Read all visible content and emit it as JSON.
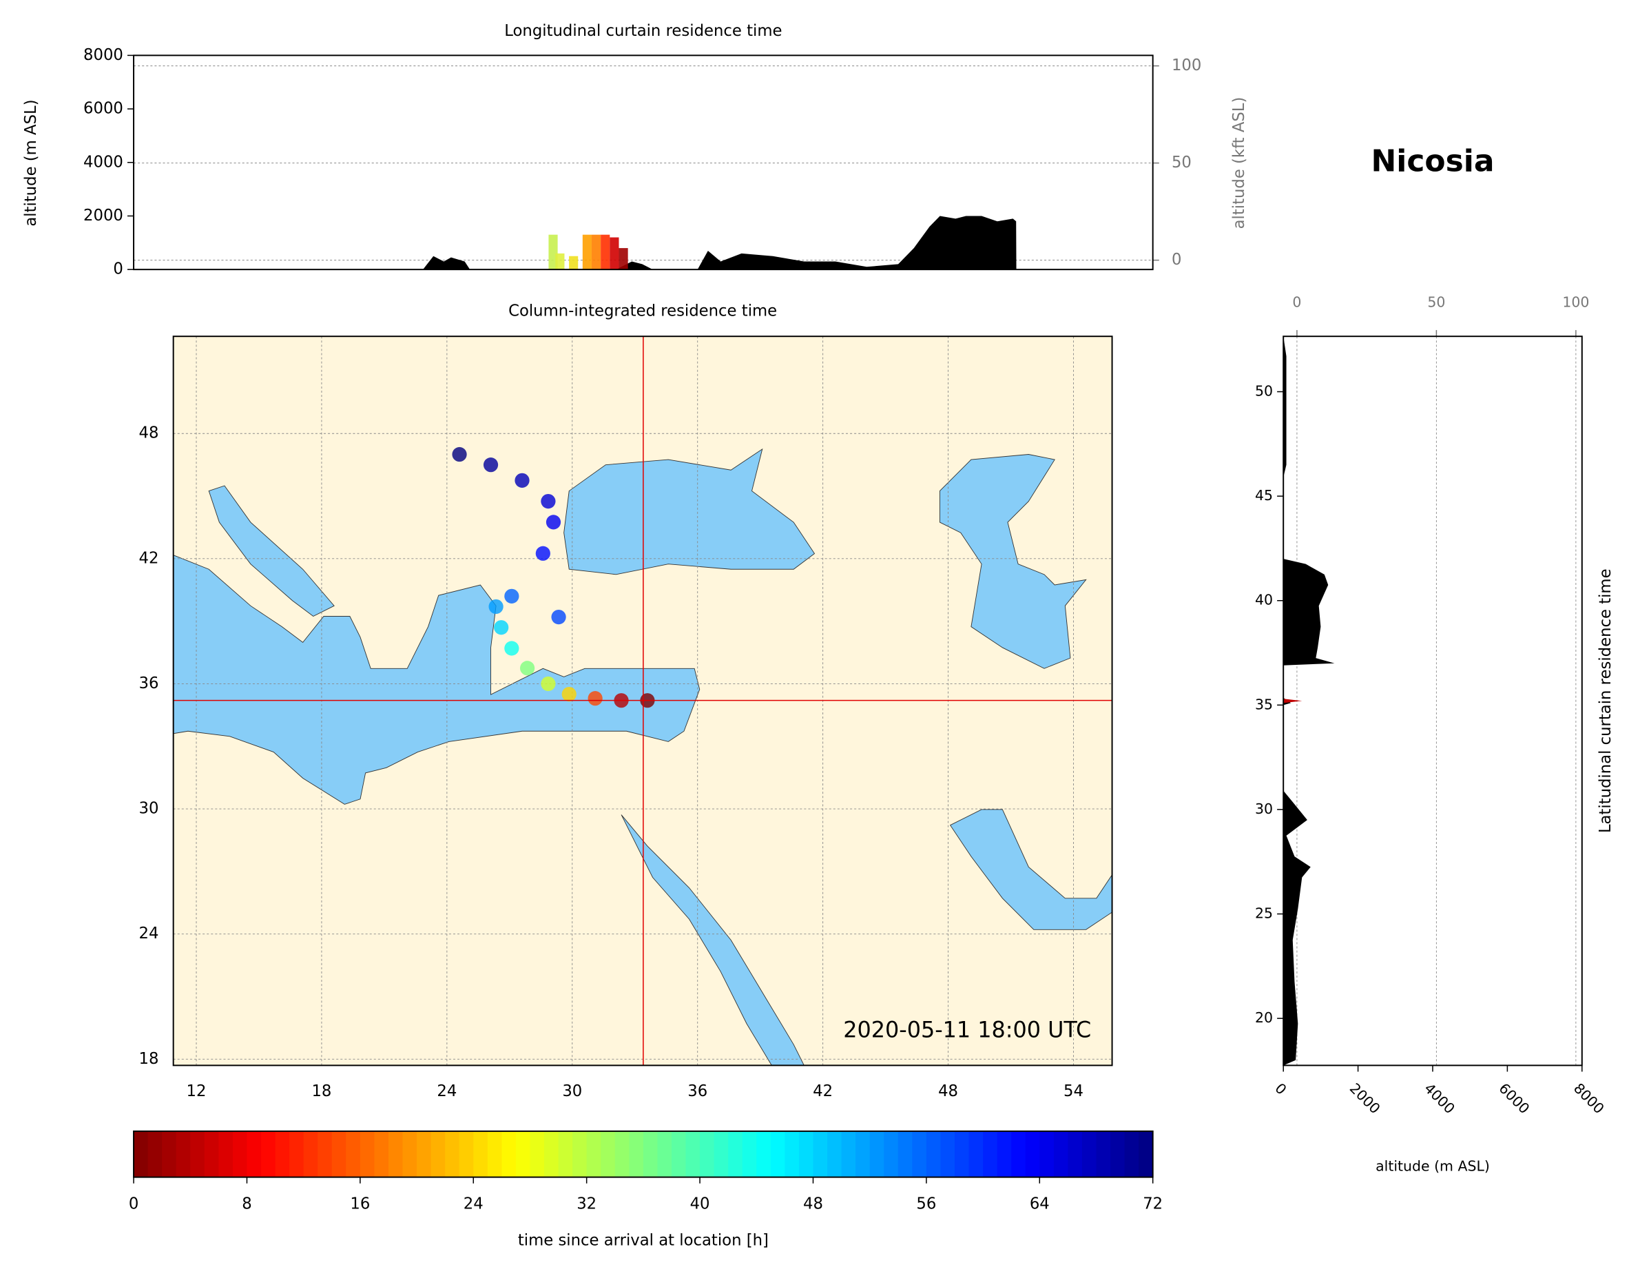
{
  "title": "Nicosia",
  "chart_data": [
    {
      "type": "area",
      "title": "Longitudinal curtain residence time",
      "y_label": "altitude (m ASL)",
      "y2_label": "altitude (kft ASL)",
      "xlim": [
        10.9,
        55.85
      ],
      "ylim": [
        0,
        8000
      ],
      "yticks": [
        0,
        2000,
        4000,
        6000,
        8000
      ],
      "y2lim": [
        -4.8,
        105.4
      ],
      "y2ticks": [
        0,
        50,
        100
      ],
      "grid": true,
      "series": [
        {
          "color": "#000000",
          "x": [
            23.66,
            24.12,
            24.58,
            24.9,
            25.5,
            25.73,
            32.18,
            32.87,
            33.33,
            33.79,
            35.77,
            36.23,
            36.79,
            37.71,
            39.09,
            40.47,
            41.85,
            43.23,
            44.62,
            45.31,
            46.0,
            46.46,
            47.15,
            47.61,
            48.3,
            48.99,
            49.68,
            49.82,
            49.83
          ],
          "values": [
            0,
            500,
            300,
            450,
            300,
            0,
            0,
            300,
            200,
            0,
            0,
            700,
            300,
            600,
            500,
            300,
            300,
            100,
            200,
            800,
            1600,
            2000,
            1900,
            2000,
            2000,
            1800,
            1900,
            1800,
            0
          ]
        }
      ],
      "plume": {
        "x": [
          29.4,
          29.7,
          30.3,
          30.9,
          31.3,
          31.7,
          32.1,
          32.5
        ],
        "values": [
          1300,
          600,
          500,
          1300,
          1300,
          1300,
          1200,
          800
        ],
        "colors": [
          "#c8f050",
          "#e0f040",
          "#f0e020",
          "#ffa000",
          "#ff8000",
          "#ff3000",
          "#d00000",
          "#a00000"
        ]
      }
    },
    {
      "type": "map",
      "title": "Column-integrated residence time",
      "xlim": [
        10.9,
        55.85
      ],
      "ylim": [
        17.7,
        52.66
      ],
      "xticks": [
        12,
        18,
        24,
        30,
        36,
        42,
        48,
        54
      ],
      "yticks": [
        18,
        24,
        30,
        36,
        42,
        48
      ],
      "grid": true,
      "marker": {
        "x": 33.4,
        "y": 35.2,
        "color": "#e00000"
      },
      "trajectory": {
        "x": [
          33.6,
          32.35,
          31.1,
          29.85,
          28.85,
          27.85,
          27.1,
          26.6,
          26.35,
          27.1,
          29.35,
          28.6,
          29.1,
          28.85,
          27.6,
          26.1,
          24.6
        ],
        "y": [
          35.2,
          35.2,
          35.3,
          35.5,
          36.0,
          36.75,
          37.7,
          38.7,
          39.7,
          40.2,
          39.2,
          42.25,
          43.75,
          44.75,
          45.75,
          46.5,
          47.0
        ],
        "values": [
          0,
          4,
          14,
          24,
          30,
          36,
          44,
          48,
          52,
          56,
          58,
          62,
          64,
          66,
          68,
          70,
          72
        ]
      },
      "annotation": "2020-05-11 18:00 UTC"
    },
    {
      "type": "colorbar",
      "label": "time since arrival at location [h]",
      "lim": [
        0,
        72
      ],
      "ticks": [
        0,
        8,
        16,
        24,
        32,
        40,
        48,
        56,
        64,
        72
      ],
      "colormap": "jet_r"
    },
    {
      "type": "area",
      "orientation": "horizontal",
      "title": "Latitudinal curtain residence time",
      "x_label": "altitude (m ASL)",
      "xlim": [
        0,
        8000
      ],
      "xticks": [
        0,
        2000,
        4000,
        6000,
        8000
      ],
      "x2lim": [
        -4.87,
        102.2
      ],
      "x2ticks": [
        0,
        50,
        100
      ],
      "ylim": [
        17.75,
        52.65
      ],
      "yticks": [
        20,
        25,
        30,
        35,
        40,
        45,
        50
      ],
      "grid": true,
      "series": [
        {
          "color": "#000000",
          "y": [
            17.75,
            18.0,
            19.75,
            21.75,
            23.75,
            25.25,
            26.75,
            27.25,
            27.75,
            28.75,
            29.5,
            30.25,
            30.9,
            35.0,
            35.1,
            35.35,
            36.9,
            37.0,
            37.25,
            37.75,
            38.75,
            39.75,
            40.75,
            41.25,
            41.75,
            42.0,
            45.9,
            46.5,
            51.7,
            52.65
          ],
          "values": [
            0,
            330,
            390,
            300,
            250,
            390,
            500,
            730,
            300,
            80,
            640,
            300,
            0,
            0,
            200,
            0,
            0,
            1370,
            870,
            920,
            1000,
            950,
            1200,
            1100,
            600,
            0,
            0,
            80,
            80,
            0
          ]
        }
      ],
      "plume": {
        "y": [
          35.2
        ],
        "values": [
          500
        ],
        "colors": [
          "#c00000"
        ]
      }
    }
  ]
}
